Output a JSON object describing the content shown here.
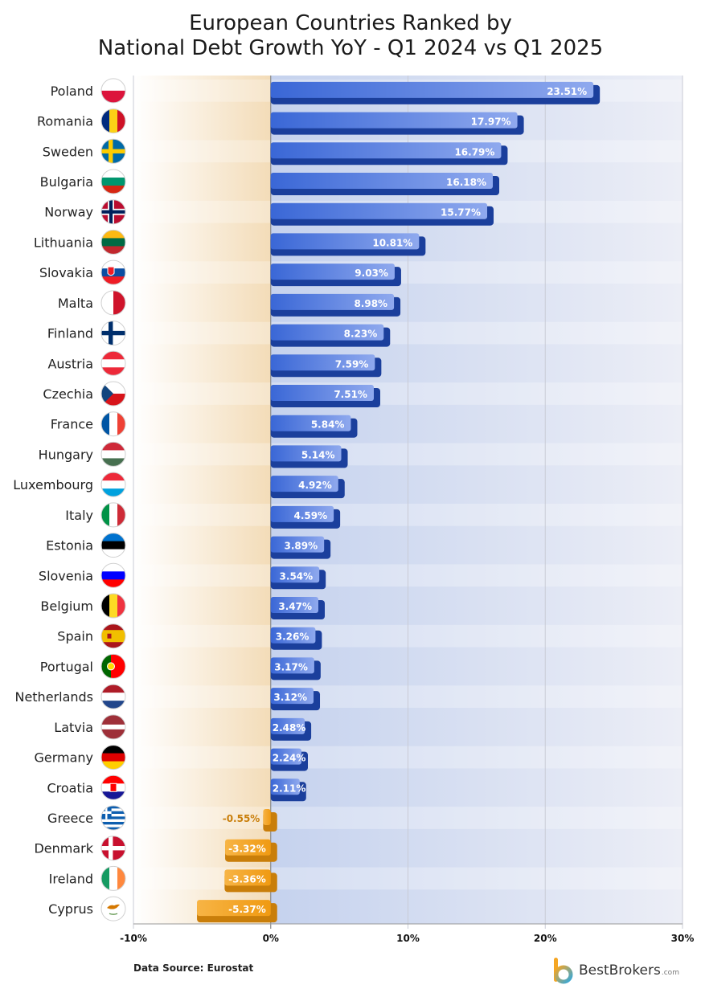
{
  "title_lines": [
    "European Countries Ranked by",
    "National Debt Growth YoY - Q1 2024 vs Q1 2025"
  ],
  "source": "Data Source: Eurostat",
  "brand": {
    "name": "BestBrokers",
    "tld": ".com"
  },
  "colors": {
    "positive": "#2f5fd0",
    "positive_dark": "#1b3f9c",
    "negative": "#f2a320",
    "negative_dark": "#c97e0a"
  },
  "chart_data": {
    "type": "bar",
    "orientation": "horizontal",
    "title": "European Countries Ranked by National Debt Growth YoY - Q1 2024 vs Q1 2025",
    "xlim": [
      -10,
      30
    ],
    "xticks": [
      -10,
      0,
      10,
      20,
      30
    ],
    "xtick_labels": [
      "-10%",
      "0%",
      "10%",
      "20%",
      "30%"
    ],
    "unit": "%",
    "categories": [
      "Poland",
      "Romania",
      "Sweden",
      "Bulgaria",
      "Norway",
      "Lithuania",
      "Slovakia",
      "Malta",
      "Finland",
      "Austria",
      "Czechia",
      "France",
      "Hungary",
      "Luxembourg",
      "Italy",
      "Estonia",
      "Slovenia",
      "Belgium",
      "Spain",
      "Portugal",
      "Netherlands",
      "Latvia",
      "Germany",
      "Croatia",
      "Greece",
      "Denmark",
      "Ireland",
      "Cyprus"
    ],
    "values": [
      23.51,
      17.97,
      16.79,
      16.18,
      15.77,
      10.81,
      9.03,
      8.98,
      8.23,
      7.59,
      7.51,
      5.84,
      5.14,
      4.92,
      4.59,
      3.89,
      3.54,
      3.47,
      3.26,
      3.17,
      3.12,
      2.48,
      2.24,
      2.11,
      -0.55,
      -3.32,
      -3.36,
      -5.37
    ],
    "value_labels": [
      "23.51%",
      "17.97%",
      "16.79%",
      "16.18%",
      "15.77%",
      "10.81%",
      "9.03%",
      "8.98%",
      "8.23%",
      "7.59%",
      "7.51%",
      "5.84%",
      "5.14%",
      "4.92%",
      "4.59%",
      "3.89%",
      "3.54%",
      "3.47%",
      "3.26%",
      "3.17%",
      "3.12%",
      "2.48%",
      "2.24%",
      "2.11%",
      "-0.55%",
      "-3.32%",
      "-3.36%",
      "-5.37%"
    ],
    "flags": [
      {
        "type": "h",
        "colors": [
          "#ffffff",
          "#dc143c"
        ]
      },
      {
        "type": "v",
        "colors": [
          "#002b7f",
          "#fcd116",
          "#ce1126"
        ]
      },
      {
        "type": "nordic",
        "colors": [
          "#006aa7",
          "#fecc00"
        ]
      },
      {
        "type": "h",
        "colors": [
          "#ffffff",
          "#00966e",
          "#d62612"
        ]
      },
      {
        "type": "nordic2",
        "colors": [
          "#ba0c2f",
          "#ffffff",
          "#00205b"
        ]
      },
      {
        "type": "h",
        "colors": [
          "#fdb913",
          "#006a44",
          "#c1272d"
        ]
      },
      {
        "type": "h",
        "colors": [
          "#ffffff",
          "#0b4ea2",
          "#ee1c25"
        ]
      },
      {
        "type": "v",
        "colors": [
          "#ffffff",
          "#cf142b"
        ]
      },
      {
        "type": "nordic",
        "colors": [
          "#ffffff",
          "#002f6c"
        ]
      },
      {
        "type": "h",
        "colors": [
          "#ed2939",
          "#ffffff",
          "#ed2939"
        ]
      },
      {
        "type": "cz",
        "colors": [
          "#ffffff",
          "#d7141a",
          "#11457e"
        ]
      },
      {
        "type": "v",
        "colors": [
          "#0055a4",
          "#ffffff",
          "#ef4135"
        ]
      },
      {
        "type": "h",
        "colors": [
          "#ce2939",
          "#ffffff",
          "#477050"
        ]
      },
      {
        "type": "h",
        "colors": [
          "#ed2939",
          "#ffffff",
          "#00a1de"
        ]
      },
      {
        "type": "v",
        "colors": [
          "#009246",
          "#ffffff",
          "#ce2b37"
        ]
      },
      {
        "type": "h",
        "colors": [
          "#0072ce",
          "#000000",
          "#ffffff"
        ]
      },
      {
        "type": "h",
        "colors": [
          "#ffffff",
          "#0000ff",
          "#ff0000"
        ]
      },
      {
        "type": "v",
        "colors": [
          "#000000",
          "#fdda24",
          "#ef3340"
        ]
      },
      {
        "type": "es",
        "colors": [
          "#aa151b",
          "#f1bf00"
        ]
      },
      {
        "type": "pt",
        "colors": [
          "#006600",
          "#ff0000"
        ]
      },
      {
        "type": "h",
        "colors": [
          "#ae1c28",
          "#ffffff",
          "#21468b"
        ]
      },
      {
        "type": "lv",
        "colors": [
          "#9e3039",
          "#ffffff"
        ]
      },
      {
        "type": "h",
        "colors": [
          "#000000",
          "#dd0000",
          "#ffce00"
        ]
      },
      {
        "type": "h",
        "colors": [
          "#ff0000",
          "#ffffff",
          "#171796"
        ]
      },
      {
        "type": "stripes",
        "colors": [
          "#0d5eaf",
          "#ffffff"
        ]
      },
      {
        "type": "nordic",
        "colors": [
          "#c8102e",
          "#ffffff"
        ]
      },
      {
        "type": "v",
        "colors": [
          "#169b62",
          "#ffffff",
          "#ff883e"
        ]
      },
      {
        "type": "cy",
        "colors": [
          "#ffffff",
          "#d57800"
        ]
      }
    ]
  }
}
